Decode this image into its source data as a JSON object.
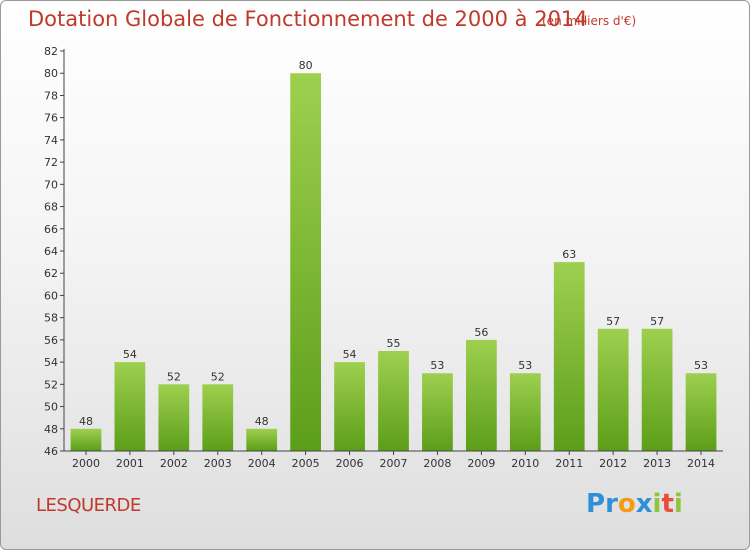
{
  "chart_data": {
    "type": "bar",
    "title": "Dotation Globale de Fonctionnement de 2000 à 2014",
    "subtitle": "(en milliers d'€)",
    "categories": [
      "2000",
      "2001",
      "2002",
      "2003",
      "2004",
      "2005",
      "2006",
      "2007",
      "2008",
      "2009",
      "2010",
      "2011",
      "2012",
      "2013",
      "2014"
    ],
    "values": [
      48,
      54,
      52,
      52,
      48,
      80,
      54,
      55,
      53,
      56,
      53,
      63,
      57,
      57,
      53
    ],
    "ylim": [
      46,
      82
    ],
    "ytick_step": 2,
    "xlabel": "",
    "ylabel": "",
    "grid": false,
    "legend": "none",
    "bar_color_light": "#9ed04f",
    "bar_color_dark": "#5c9e19"
  },
  "commune": "LESQUERDE",
  "logo": {
    "letters": [
      {
        "ch": "P",
        "color": "#2f8fd8"
      },
      {
        "ch": "r",
        "color": "#2f8fd8"
      },
      {
        "ch": "o",
        "color": "#f39c12"
      },
      {
        "ch": "x",
        "color": "#2f8fd8"
      },
      {
        "ch": "i",
        "color": "#8cc63f"
      },
      {
        "ch": "t",
        "color": "#e74c3c"
      },
      {
        "ch": "i",
        "color": "#8cc63f"
      }
    ]
  }
}
